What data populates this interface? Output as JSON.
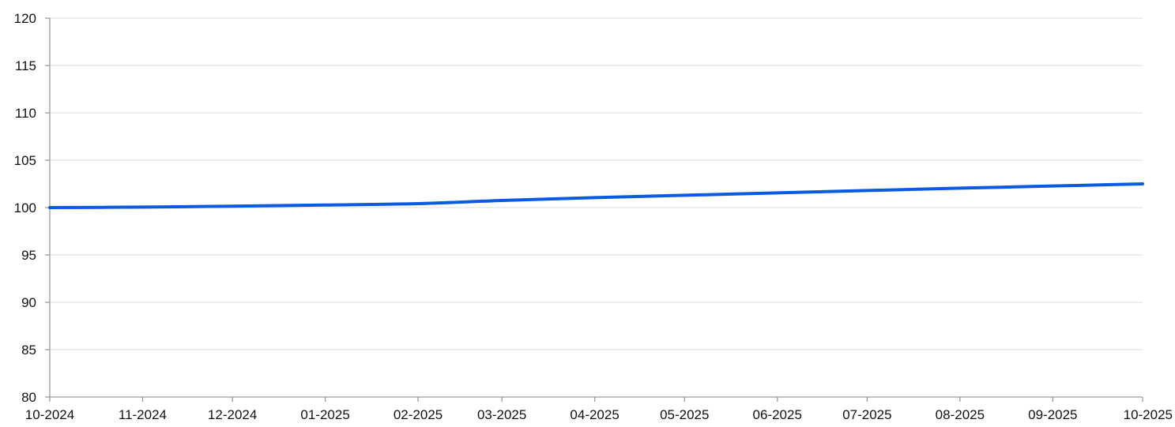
{
  "chart_data": {
    "type": "line",
    "title": "",
    "xlabel": "",
    "ylabel": "",
    "x": [
      "10-2024",
      "11-2024",
      "12-2024",
      "01-2025",
      "02-2025",
      "03-2025",
      "04-2025",
      "05-2025",
      "06-2025",
      "07-2025",
      "08-2025",
      "09-2025",
      "10-2025"
    ],
    "x_dates": [
      "2024-10-01",
      "2024-11-01",
      "2024-12-01",
      "2025-01-01",
      "2025-02-01",
      "2025-03-01",
      "2025-04-01",
      "2025-05-01",
      "2025-06-01",
      "2025-07-01",
      "2025-08-01",
      "2025-09-01",
      "2025-10-01"
    ],
    "series": [
      {
        "values": [
          100.0,
          100.05,
          100.15,
          100.27,
          100.42,
          100.75,
          101.05,
          101.3,
          101.55,
          101.8,
          102.05,
          102.28,
          102.5
        ],
        "color": "#0a5be0"
      }
    ],
    "ylim": [
      80,
      120
    ],
    "yticks": [
      80,
      85,
      90,
      95,
      100,
      105,
      110,
      115,
      120
    ],
    "grid": true,
    "legend": "none"
  }
}
